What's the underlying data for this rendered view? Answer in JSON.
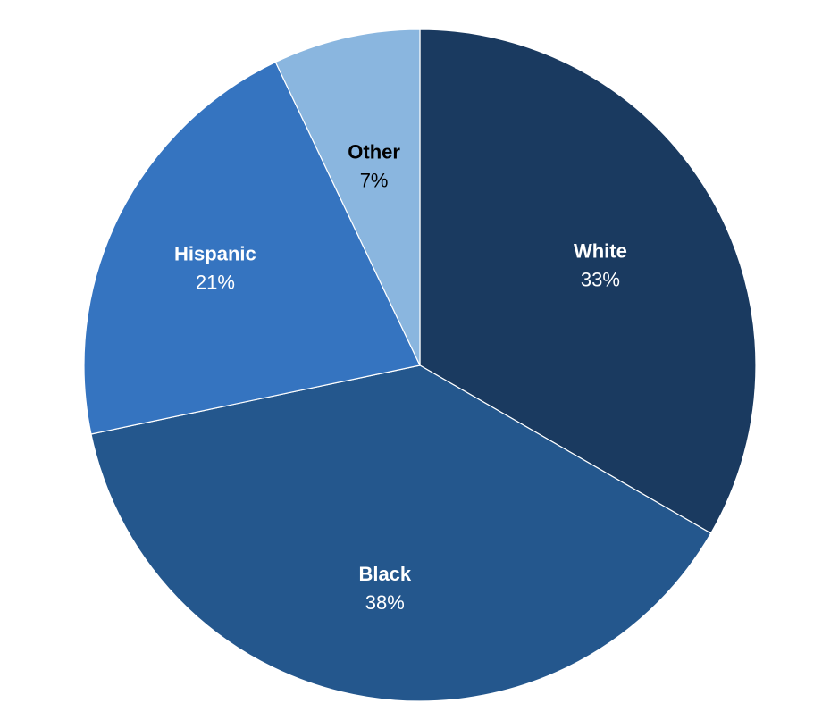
{
  "chart_data": {
    "type": "pie",
    "start": "12 o'clock",
    "direction": "clockwise",
    "categories": [
      "White",
      "Black",
      "Hispanic",
      "Other"
    ],
    "values": [
      33,
      38,
      21,
      7
    ],
    "value_labels": [
      "33%",
      "38%",
      "21%",
      "7%"
    ],
    "colors": [
      "#1a3a60",
      "#24578d",
      "#3574c0",
      "#8ab6df"
    ],
    "label_colors": [
      "#ffffff",
      "#ffffff",
      "#ffffff",
      "#000000"
    ],
    "title": "",
    "legend": "none"
  }
}
